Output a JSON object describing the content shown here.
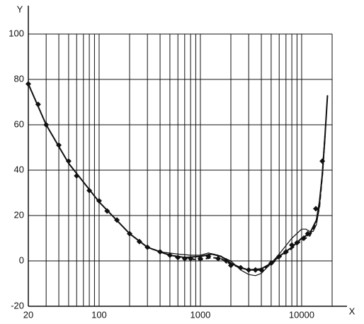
{
  "chart_data": {
    "type": "line",
    "x_label": "X",
    "y_label": "Y",
    "xlim": [
      20,
      20000
    ],
    "ylim": [
      -20,
      100
    ],
    "log_x": true,
    "xticks": [
      20,
      100,
      1000,
      10000
    ],
    "xgrid": [
      20,
      30,
      40,
      50,
      60,
      70,
      80,
      90,
      100,
      200,
      300,
      400,
      500,
      600,
      700,
      800,
      900,
      1000,
      2000,
      3000,
      4000,
      5000,
      6000,
      7000,
      8000,
      9000,
      10000,
      20000
    ],
    "yticks": [
      -20,
      0,
      20,
      40,
      60,
      80,
      100
    ],
    "grid": true,
    "series": [
      {
        "color": "#111111",
        "style": "solid",
        "width": 2,
        "x": [
          20,
          30,
          50,
          100,
          200,
          300,
          500,
          700,
          1000,
          1300,
          1600,
          2000,
          2500,
          3000,
          4000,
          5000,
          6000,
          8000,
          10000,
          12000,
          14000,
          15000,
          16000,
          17000,
          18000
        ],
        "values": [
          78,
          60,
          43,
          26,
          12,
          6,
          2.5,
          1.5,
          2,
          3,
          2,
          -1,
          -3,
          -4,
          -3.5,
          -1,
          2,
          6,
          10,
          12,
          18,
          26,
          38,
          55,
          73
        ]
      },
      {
        "color": "#111111",
        "style": "markers",
        "marker": "diamond",
        "x": [
          20,
          25,
          30,
          40,
          50,
          60,
          80,
          100,
          120,
          150,
          200,
          250,
          300,
          400,
          500,
          600,
          700,
          800,
          1000,
          1200,
          1500,
          1800,
          2000,
          2500,
          3000,
          3500,
          4000,
          5000,
          6000,
          7000,
          8000,
          9000,
          10500,
          11500,
          13800,
          16000
        ],
        "values": [
          78,
          69,
          60,
          51,
          44,
          37.5,
          31,
          26.5,
          22,
          18,
          12,
          8.5,
          6,
          4,
          2.5,
          1.5,
          1,
          1,
          1,
          2,
          1,
          0,
          -2,
          -3,
          -4,
          -4,
          -4,
          -1,
          2,
          4,
          7,
          8,
          10,
          12,
          23,
          44
        ]
      },
      {
        "color": "#111111",
        "style": "dashed",
        "width": 2,
        "x": [
          400,
          500,
          700,
          1000,
          1300,
          1600,
          2000,
          2500,
          3000,
          4000,
          5000,
          6000,
          8000,
          10000,
          12000,
          14000,
          15000,
          16000,
          17000
        ],
        "values": [
          4,
          2.5,
          1,
          0.5,
          1.5,
          1,
          -1.5,
          -3,
          -4,
          -4,
          -1.5,
          1.5,
          5.5,
          9,
          11,
          17,
          24,
          38,
          55
        ]
      },
      {
        "color": "#111111",
        "style": "solid",
        "width": 1.2,
        "x": [
          400,
          600,
          800,
          1000,
          1200,
          1500,
          2000,
          2500,
          3000,
          3500,
          4000,
          5000,
          6000,
          8000,
          10000,
          11000,
          12000,
          13000,
          14000,
          15000,
          16000,
          17000,
          18000
        ],
        "values": [
          4,
          3,
          2.5,
          2.5,
          3.5,
          2.5,
          0,
          -4,
          -6,
          -6.5,
          -5.5,
          -1,
          3,
          10,
          14,
          14,
          13,
          13,
          16,
          24,
          38,
          55,
          73
        ]
      }
    ]
  }
}
